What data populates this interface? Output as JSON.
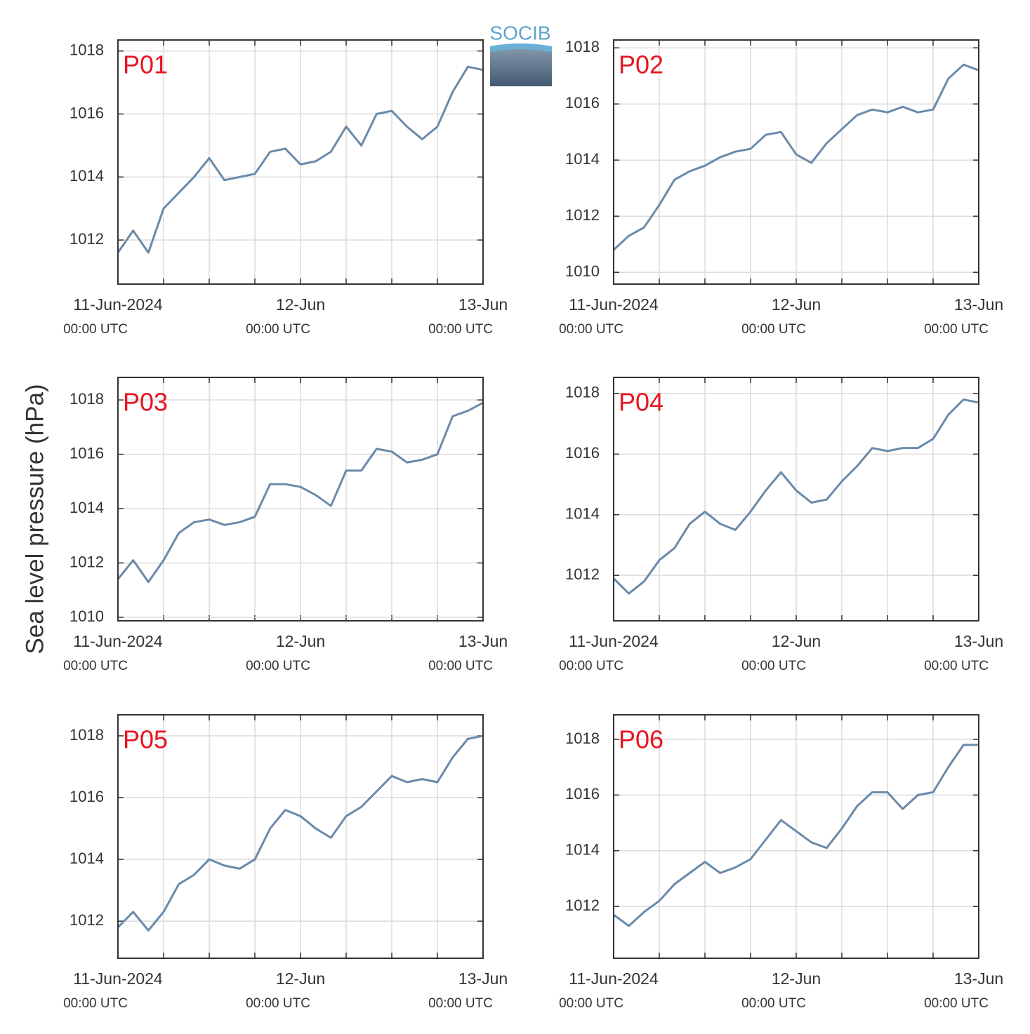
{
  "ylabel": "Sea level pressure (hPa)",
  "logo": "SOCIB",
  "chart_data": [
    {
      "type": "line",
      "title": "P01",
      "color": "#6a8aab",
      "grid": true,
      "x": [
        "2024-06-11T00:00Z",
        "2024-06-11T02:00Z",
        "2024-06-11T04:00Z",
        "2024-06-11T06:00Z",
        "2024-06-11T08:00Z",
        "2024-06-11T10:00Z",
        "2024-06-11T12:00Z",
        "2024-06-11T14:00Z",
        "2024-06-11T16:00Z",
        "2024-06-11T18:00Z",
        "2024-06-11T20:00Z",
        "2024-06-11T22:00Z",
        "2024-06-12T00:00Z",
        "2024-06-12T02:00Z",
        "2024-06-12T04:00Z",
        "2024-06-12T06:00Z",
        "2024-06-12T08:00Z",
        "2024-06-12T10:00Z",
        "2024-06-12T12:00Z",
        "2024-06-12T14:00Z",
        "2024-06-12T16:00Z",
        "2024-06-12T18:00Z",
        "2024-06-12T20:00Z",
        "2024-06-12T22:00Z",
        "2024-06-13T00:00Z"
      ],
      "values": [
        1011.6,
        1012.3,
        1011.6,
        1013.0,
        1013.5,
        1014.0,
        1014.6,
        1013.9,
        1014.0,
        1014.1,
        1014.8,
        1014.9,
        1014.4,
        1014.5,
        1014.8,
        1015.6,
        1015.0,
        1016.0,
        1016.1,
        1015.6,
        1015.2,
        1015.6,
        1016.7,
        1017.5,
        1017.4
      ],
      "xlim": [
        "2024-06-11T00:00Z",
        "2024-06-13T00:00Z"
      ],
      "xticks": [
        {
          "value": "2024-06-11T00:00Z",
          "label": [
            "11-Jun-2024",
            "00:00 UTC"
          ]
        },
        {
          "value": "2024-06-11T06:00Z",
          "label": null
        },
        {
          "value": "2024-06-11T12:00Z",
          "label": null
        },
        {
          "value": "2024-06-11T18:00Z",
          "label": null
        },
        {
          "value": "2024-06-12T00:00Z",
          "label": [
            "12-Jun",
            "00:00 UTC"
          ]
        },
        {
          "value": "2024-06-12T06:00Z",
          "label": null
        },
        {
          "value": "2024-06-12T12:00Z",
          "label": null
        },
        {
          "value": "2024-06-12T18:00Z",
          "label": null
        },
        {
          "value": "2024-06-13T00:00Z",
          "label": [
            "13-Jun",
            "00:00 UTC"
          ]
        }
      ],
      "ylim": [
        1010.6,
        1018.35
      ],
      "yticks": [
        1012,
        1014,
        1016,
        1018
      ]
    },
    {
      "type": "line",
      "title": "P02",
      "color": "#6a8aab",
      "grid": true,
      "x": [
        "2024-06-11T00:00Z",
        "2024-06-11T02:00Z",
        "2024-06-11T04:00Z",
        "2024-06-11T06:00Z",
        "2024-06-11T08:00Z",
        "2024-06-11T10:00Z",
        "2024-06-11T12:00Z",
        "2024-06-11T14:00Z",
        "2024-06-11T16:00Z",
        "2024-06-11T18:00Z",
        "2024-06-11T20:00Z",
        "2024-06-11T22:00Z",
        "2024-06-12T00:00Z",
        "2024-06-12T02:00Z",
        "2024-06-12T04:00Z",
        "2024-06-12T06:00Z",
        "2024-06-12T08:00Z",
        "2024-06-12T10:00Z",
        "2024-06-12T12:00Z",
        "2024-06-12T14:00Z",
        "2024-06-12T16:00Z",
        "2024-06-12T18:00Z",
        "2024-06-12T20:00Z",
        "2024-06-12T22:00Z",
        "2024-06-13T00:00Z"
      ],
      "values": [
        1010.8,
        1011.3,
        1011.6,
        1012.4,
        1013.3,
        1013.6,
        1013.8,
        1014.1,
        1014.3,
        1014.4,
        1014.9,
        1015.0,
        1014.2,
        1013.9,
        1014.6,
        1015.1,
        1015.6,
        1015.8,
        1015.7,
        1015.9,
        1015.7,
        1015.8,
        1016.9,
        1017.4,
        1017.2
      ],
      "xlim": [
        "2024-06-11T00:00Z",
        "2024-06-13T00:00Z"
      ],
      "xticks": [
        {
          "value": "2024-06-11T00:00Z",
          "label": [
            "11-Jun-2024",
            "00:00 UTC"
          ]
        },
        {
          "value": "2024-06-11T06:00Z",
          "label": null
        },
        {
          "value": "2024-06-11T12:00Z",
          "label": null
        },
        {
          "value": "2024-06-11T18:00Z",
          "label": null
        },
        {
          "value": "2024-06-12T00:00Z",
          "label": [
            "12-Jun",
            "00:00 UTC"
          ]
        },
        {
          "value": "2024-06-12T06:00Z",
          "label": null
        },
        {
          "value": "2024-06-12T12:00Z",
          "label": null
        },
        {
          "value": "2024-06-12T18:00Z",
          "label": null
        },
        {
          "value": "2024-06-13T00:00Z",
          "label": [
            "13-Jun",
            "00:00 UTC"
          ]
        }
      ],
      "ylim": [
        1009.58,
        1018.28
      ],
      "yticks": [
        1010,
        1012,
        1014,
        1016,
        1018
      ]
    },
    {
      "type": "line",
      "title": "P03",
      "color": "#6a8aab",
      "grid": true,
      "x": [
        "2024-06-11T00:00Z",
        "2024-06-11T02:00Z",
        "2024-06-11T04:00Z",
        "2024-06-11T06:00Z",
        "2024-06-11T08:00Z",
        "2024-06-11T10:00Z",
        "2024-06-11T12:00Z",
        "2024-06-11T14:00Z",
        "2024-06-11T16:00Z",
        "2024-06-11T18:00Z",
        "2024-06-11T20:00Z",
        "2024-06-11T22:00Z",
        "2024-06-12T00:00Z",
        "2024-06-12T02:00Z",
        "2024-06-12T04:00Z",
        "2024-06-12T06:00Z",
        "2024-06-12T08:00Z",
        "2024-06-12T10:00Z",
        "2024-06-12T12:00Z",
        "2024-06-12T14:00Z",
        "2024-06-12T16:00Z",
        "2024-06-12T18:00Z",
        "2024-06-12T20:00Z",
        "2024-06-12T22:00Z",
        "2024-06-13T00:00Z"
      ],
      "values": [
        1011.4,
        1012.1,
        1011.3,
        1012.1,
        1013.1,
        1013.5,
        1013.6,
        1013.4,
        1013.5,
        1013.7,
        1014.9,
        1014.9,
        1014.8,
        1014.5,
        1014.1,
        1015.4,
        1015.4,
        1016.2,
        1016.1,
        1015.7,
        1015.8,
        1016.0,
        1017.4,
        1017.6,
        1017.9
      ],
      "xlim": [
        "2024-06-11T00:00Z",
        "2024-06-13T00:00Z"
      ],
      "xticks": [
        {
          "value": "2024-06-11T00:00Z",
          "label": [
            "11-Jun-2024",
            "00:00 UTC"
          ]
        },
        {
          "value": "2024-06-11T06:00Z",
          "label": null
        },
        {
          "value": "2024-06-11T12:00Z",
          "label": null
        },
        {
          "value": "2024-06-11T18:00Z",
          "label": null
        },
        {
          "value": "2024-06-12T00:00Z",
          "label": [
            "12-Jun",
            "00:00 UTC"
          ]
        },
        {
          "value": "2024-06-12T06:00Z",
          "label": null
        },
        {
          "value": "2024-06-12T12:00Z",
          "label": null
        },
        {
          "value": "2024-06-12T18:00Z",
          "label": null
        },
        {
          "value": "2024-06-13T00:00Z",
          "label": [
            "13-Jun",
            "00:00 UTC"
          ]
        }
      ],
      "ylim": [
        1009.87,
        1018.83
      ],
      "yticks": [
        1010,
        1012,
        1014,
        1016,
        1018
      ]
    },
    {
      "type": "line",
      "title": "P04",
      "color": "#6a8aab",
      "grid": true,
      "x": [
        "2024-06-11T00:00Z",
        "2024-06-11T02:00Z",
        "2024-06-11T04:00Z",
        "2024-06-11T06:00Z",
        "2024-06-11T08:00Z",
        "2024-06-11T10:00Z",
        "2024-06-11T12:00Z",
        "2024-06-11T14:00Z",
        "2024-06-11T16:00Z",
        "2024-06-11T18:00Z",
        "2024-06-11T20:00Z",
        "2024-06-11T22:00Z",
        "2024-06-12T00:00Z",
        "2024-06-12T02:00Z",
        "2024-06-12T04:00Z",
        "2024-06-12T06:00Z",
        "2024-06-12T08:00Z",
        "2024-06-12T10:00Z",
        "2024-06-12T12:00Z",
        "2024-06-12T14:00Z",
        "2024-06-12T16:00Z",
        "2024-06-12T18:00Z",
        "2024-06-12T20:00Z",
        "2024-06-12T22:00Z",
        "2024-06-13T00:00Z"
      ],
      "values": [
        1011.9,
        1011.4,
        1011.8,
        1012.5,
        1012.9,
        1013.7,
        1014.1,
        1013.7,
        1013.5,
        1014.1,
        1014.8,
        1015.4,
        1014.8,
        1014.4,
        1014.5,
        1015.1,
        1015.6,
        1016.2,
        1016.1,
        1016.2,
        1016.2,
        1016.5,
        1017.3,
        1017.8,
        1017.7
      ],
      "xlim": [
        "2024-06-11T00:00Z",
        "2024-06-13T00:00Z"
      ],
      "xticks": [
        {
          "value": "2024-06-11T00:00Z",
          "label": [
            "11-Jun-2024",
            "00:00 UTC"
          ]
        },
        {
          "value": "2024-06-11T06:00Z",
          "label": null
        },
        {
          "value": "2024-06-11T12:00Z",
          "label": null
        },
        {
          "value": "2024-06-11T18:00Z",
          "label": null
        },
        {
          "value": "2024-06-12T00:00Z",
          "label": [
            "12-Jun",
            "00:00 UTC"
          ]
        },
        {
          "value": "2024-06-12T06:00Z",
          "label": null
        },
        {
          "value": "2024-06-12T12:00Z",
          "label": null
        },
        {
          "value": "2024-06-12T18:00Z",
          "label": null
        },
        {
          "value": "2024-06-13T00:00Z",
          "label": [
            "13-Jun",
            "00:00 UTC"
          ]
        }
      ],
      "ylim": [
        1010.5,
        1018.53
      ],
      "yticks": [
        1012,
        1014,
        1016,
        1018
      ]
    },
    {
      "type": "line",
      "title": "P05",
      "color": "#6a8aab",
      "grid": true,
      "x": [
        "2024-06-11T00:00Z",
        "2024-06-11T02:00Z",
        "2024-06-11T04:00Z",
        "2024-06-11T06:00Z",
        "2024-06-11T08:00Z",
        "2024-06-11T10:00Z",
        "2024-06-11T12:00Z",
        "2024-06-11T14:00Z",
        "2024-06-11T16:00Z",
        "2024-06-11T18:00Z",
        "2024-06-11T20:00Z",
        "2024-06-11T22:00Z",
        "2024-06-12T00:00Z",
        "2024-06-12T02:00Z",
        "2024-06-12T04:00Z",
        "2024-06-12T06:00Z",
        "2024-06-12T08:00Z",
        "2024-06-12T10:00Z",
        "2024-06-12T12:00Z",
        "2024-06-12T14:00Z",
        "2024-06-12T16:00Z",
        "2024-06-12T18:00Z",
        "2024-06-12T20:00Z",
        "2024-06-12T22:00Z",
        "2024-06-13T00:00Z"
      ],
      "values": [
        1011.8,
        1012.3,
        1011.7,
        1012.3,
        1013.2,
        1013.5,
        1014.0,
        1013.8,
        1013.7,
        1014.0,
        1015.0,
        1015.6,
        1015.4,
        1015.0,
        1014.7,
        1015.4,
        1015.7,
        1016.2,
        1016.7,
        1016.5,
        1016.6,
        1016.5,
        1017.3,
        1017.9,
        1018.0
      ],
      "xlim": [
        "2024-06-11T00:00Z",
        "2024-06-13T00:00Z"
      ],
      "xticks": [
        {
          "value": "2024-06-11T00:00Z",
          "label": [
            "11-Jun-2024",
            "00:00 UTC"
          ]
        },
        {
          "value": "2024-06-11T06:00Z",
          "label": null
        },
        {
          "value": "2024-06-11T12:00Z",
          "label": null
        },
        {
          "value": "2024-06-11T18:00Z",
          "label": null
        },
        {
          "value": "2024-06-12T00:00Z",
          "label": [
            "12-Jun",
            "00:00 UTC"
          ]
        },
        {
          "value": "2024-06-12T06:00Z",
          "label": null
        },
        {
          "value": "2024-06-12T12:00Z",
          "label": null
        },
        {
          "value": "2024-06-12T18:00Z",
          "label": null
        },
        {
          "value": "2024-06-13T00:00Z",
          "label": [
            "13-Jun",
            "00:00 UTC"
          ]
        }
      ],
      "ylim": [
        1010.8,
        1018.68
      ],
      "yticks": [
        1012,
        1014,
        1016,
        1018
      ]
    },
    {
      "type": "line",
      "title": "P06",
      "color": "#6a8aab",
      "grid": true,
      "x": [
        "2024-06-11T00:00Z",
        "2024-06-11T02:00Z",
        "2024-06-11T04:00Z",
        "2024-06-11T06:00Z",
        "2024-06-11T08:00Z",
        "2024-06-11T10:00Z",
        "2024-06-11T12:00Z",
        "2024-06-11T14:00Z",
        "2024-06-11T16:00Z",
        "2024-06-11T18:00Z",
        "2024-06-11T20:00Z",
        "2024-06-11T22:00Z",
        "2024-06-12T00:00Z",
        "2024-06-12T02:00Z",
        "2024-06-12T04:00Z",
        "2024-06-12T06:00Z",
        "2024-06-12T08:00Z",
        "2024-06-12T10:00Z",
        "2024-06-12T12:00Z",
        "2024-06-12T14:00Z",
        "2024-06-12T16:00Z",
        "2024-06-12T18:00Z",
        "2024-06-12T20:00Z",
        "2024-06-12T22:00Z",
        "2024-06-13T00:00Z"
      ],
      "values": [
        1011.7,
        1011.3,
        1011.8,
        1012.2,
        1012.8,
        1013.2,
        1013.6,
        1013.2,
        1013.4,
        1013.7,
        1014.4,
        1015.1,
        1014.7,
        1014.3,
        1014.1,
        1014.8,
        1015.6,
        1016.1,
        1016.1,
        1015.5,
        1016.0,
        1016.1,
        1017.0,
        1017.8,
        1017.8
      ],
      "xlim": [
        "2024-06-11T00:00Z",
        "2024-06-13T00:00Z"
      ],
      "xticks": [
        {
          "value": "2024-06-11T00:00Z",
          "label": [
            "11-Jun-2024",
            "00:00 UTC"
          ]
        },
        {
          "value": "2024-06-11T06:00Z",
          "label": null
        },
        {
          "value": "2024-06-11T12:00Z",
          "label": null
        },
        {
          "value": "2024-06-11T18:00Z",
          "label": null
        },
        {
          "value": "2024-06-12T00:00Z",
          "label": [
            "12-Jun",
            "00:00 UTC"
          ]
        },
        {
          "value": "2024-06-12T06:00Z",
          "label": null
        },
        {
          "value": "2024-06-12T12:00Z",
          "label": null
        },
        {
          "value": "2024-06-12T18:00Z",
          "label": null
        },
        {
          "value": "2024-06-13T00:00Z",
          "label": [
            "13-Jun",
            "00:00 UTC"
          ]
        }
      ],
      "ylim": [
        1010.14,
        1018.88
      ],
      "yticks": [
        1012,
        1014,
        1016,
        1018
      ]
    }
  ]
}
